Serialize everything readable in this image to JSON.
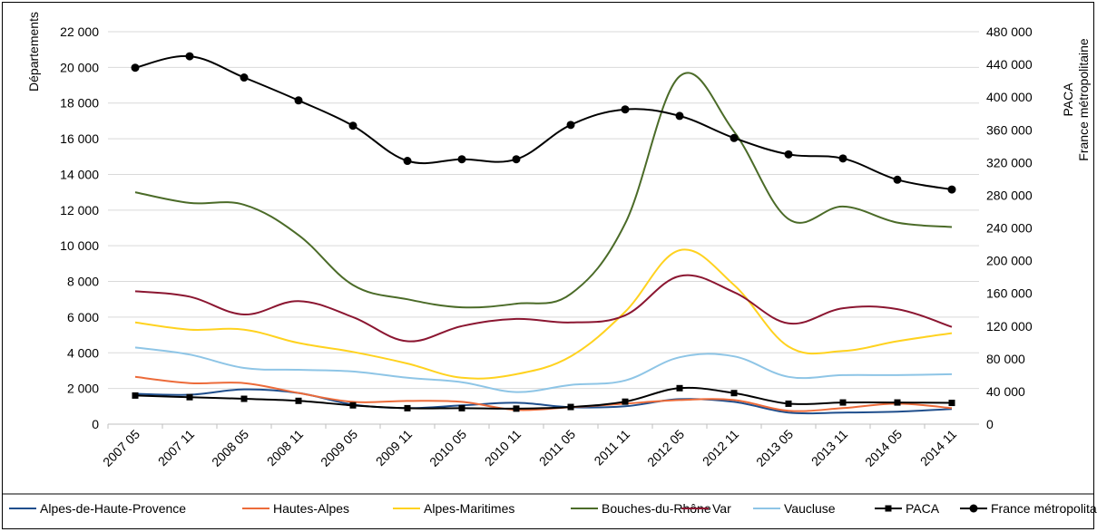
{
  "chart_data": {
    "type": "line",
    "title": "",
    "y_left_label": "Départements",
    "y_right_label_line1": "PACA",
    "y_right_label_line2": "France métropolitaine",
    "y_left_range": [
      0,
      22000
    ],
    "y_right_range": [
      0,
      480000
    ],
    "y_left_ticks": [
      "0",
      "2 000",
      "4 000",
      "6 000",
      "8 000",
      "10 000",
      "12 000",
      "14 000",
      "16 000",
      "18 000",
      "20 000",
      "22 000"
    ],
    "y_right_ticks": [
      "0",
      "40 000",
      "80 000",
      "120 000",
      "160 000",
      "200 000",
      "240 000",
      "280 000",
      "320 000",
      "360 000",
      "400 000",
      "440 000",
      "480 000"
    ],
    "grid": true,
    "legend_position": "bottom",
    "categories": [
      "2007 05",
      "2007 11",
      "2008 05",
      "2008 11",
      "2009 05",
      "2009 11",
      "2010 05",
      "2010 11",
      "2011 05",
      "2011 11",
      "2012 05",
      "2012 11",
      "2013 05",
      "2013 11",
      "2014 05",
      "2014 11"
    ],
    "series": [
      {
        "name": "Alpes-de-Haute-Provence",
        "axis": "left",
        "color": "#1f4e8c",
        "marker": "none",
        "values": [
          1700,
          1650,
          1950,
          1750,
          1100,
          900,
          1050,
          1200,
          950,
          1000,
          1400,
          1250,
          650,
          650,
          700,
          850
        ]
      },
      {
        "name": "Hautes-Alpes",
        "axis": "left",
        "color": "#ec6b3a",
        "marker": "none",
        "values": [
          2650,
          2300,
          2300,
          1750,
          1250,
          1300,
          1250,
          800,
          950,
          1150,
          1350,
          1350,
          750,
          900,
          1150,
          900
        ]
      },
      {
        "name": "Alpes-Maritimes",
        "axis": "left",
        "color": "#ffd21f",
        "marker": "none",
        "values": [
          5700,
          5300,
          5300,
          4550,
          4050,
          3400,
          2600,
          2800,
          3800,
          6300,
          9750,
          7800,
          4350,
          4100,
          4650,
          5100
        ]
      },
      {
        "name": "Bouches-du-Rhône",
        "axis": "left",
        "color": "#4b6b28",
        "marker": "none",
        "values": [
          13000,
          12400,
          12300,
          10600,
          7800,
          7000,
          6550,
          6750,
          7300,
          11250,
          19500,
          16400,
          11500,
          12200,
          11300,
          11050
        ]
      },
      {
        "name": "Var",
        "axis": "left",
        "color": "#8b1631",
        "marker": "none",
        "values": [
          7450,
          7150,
          6150,
          6900,
          6000,
          4650,
          5500,
          5900,
          5700,
          6100,
          8300,
          7400,
          5650,
          6500,
          6450,
          5450
        ]
      },
      {
        "name": "Vaucluse",
        "axis": "left",
        "color": "#8ec5e6",
        "marker": "none",
        "values": [
          4300,
          3900,
          3150,
          3050,
          2950,
          2600,
          2350,
          1800,
          2200,
          2450,
          3750,
          3800,
          2650,
          2750,
          2750,
          2800
        ]
      },
      {
        "name": "PACA",
        "axis": "right",
        "color": "#000000",
        "marker": "square",
        "values": [
          35000,
          33000,
          31000,
          28500,
          23000,
          19500,
          19500,
          19000,
          21000,
          27500,
          44000,
          38000,
          25000,
          26500,
          26500,
          26000
        ]
      },
      {
        "name": "France métropolitaine",
        "axis": "right",
        "color": "#000000",
        "marker": "circle",
        "values": [
          436000,
          450000,
          424000,
          396000,
          365000,
          322000,
          324000,
          324000,
          366000,
          385000,
          377000,
          350000,
          330000,
          325000,
          299000,
          287000
        ]
      }
    ]
  }
}
